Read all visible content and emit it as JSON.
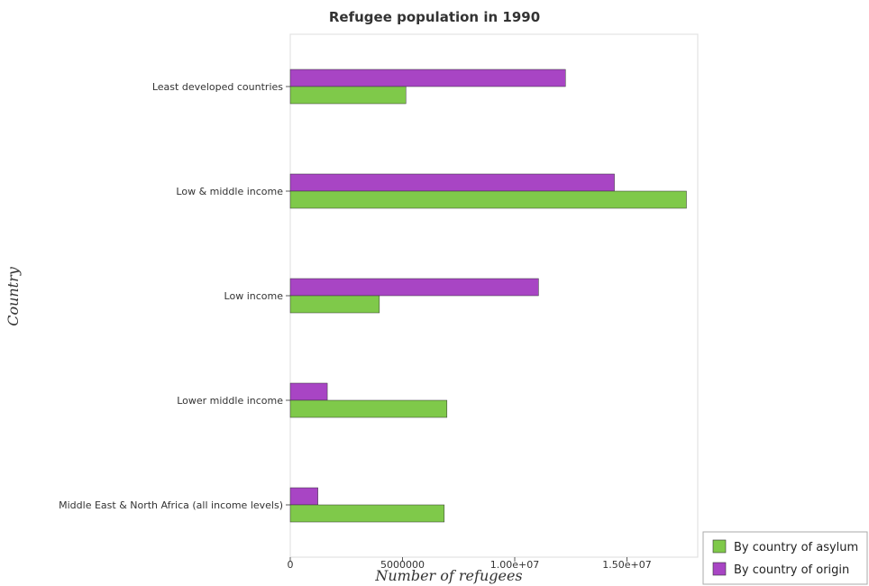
{
  "chart_data": {
    "type": "bar",
    "orientation": "horizontal",
    "title": "Refugee population in 1990",
    "xlabel": "Number of refugees",
    "ylabel": "Country",
    "categories": [
      "Least developed countries",
      "Low & middle income",
      "Low income",
      "Lower middle income",
      "Middle East & North Africa (all income levels)"
    ],
    "series": [
      {
        "name": "By country of asylum",
        "color": "#7fc94a",
        "values": [
          5150000,
          17650000,
          3970000,
          6980000,
          6860000
        ]
      },
      {
        "name": "By country of origin",
        "color": "#a845c4",
        "values": [
          12260000,
          14440000,
          11060000,
          1650000,
          1230000
        ]
      }
    ],
    "xlim": [
      0,
      18500000
    ],
    "xticks": [
      0,
      5000000,
      10000000,
      15000000
    ],
    "xtick_labels": [
      "0",
      "5000000",
      "1.00e+07",
      "1.50e+07"
    ],
    "grid": false,
    "legend_position": "bottom-right"
  }
}
